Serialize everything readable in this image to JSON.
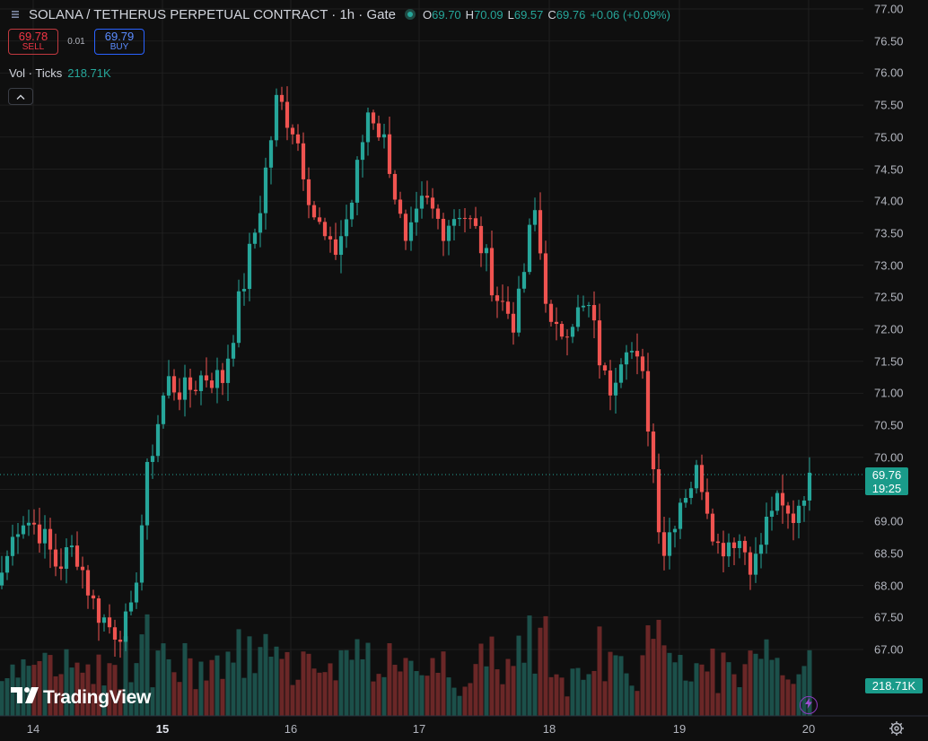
{
  "header": {
    "title": "SOLANA / TETHERUS PERPETUAL CONTRACT · 1h · Gate",
    "ohlc": {
      "o_label": "O",
      "o_value": "69.70",
      "h_label": "H",
      "h_value": "70.09",
      "l_label": "L",
      "l_value": "69.57",
      "c_label": "C",
      "c_value": "69.76",
      "change": "+0.06 (+0.09%)"
    }
  },
  "trade": {
    "sell_price": "69.78",
    "sell_label": "SELL",
    "spread": "0.01",
    "buy_price": "69.79",
    "buy_label": "BUY"
  },
  "volume_legend": {
    "label": "Vol · Ticks",
    "value": "218.71K"
  },
  "current_price": {
    "price": "69.76",
    "countdown": "19:25"
  },
  "volume_tag": "218.71K",
  "price_axis": [
    "77.00",
    "76.50",
    "76.00",
    "75.50",
    "75.00",
    "74.50",
    "74.00",
    "73.50",
    "73.00",
    "72.50",
    "72.00",
    "71.50",
    "71.00",
    "70.50",
    "70.00",
    "69.50",
    "69.00",
    "68.50",
    "68.00",
    "67.50",
    "67.00"
  ],
  "time_axis": [
    {
      "label": "14",
      "bold": false
    },
    {
      "label": "15",
      "bold": true
    },
    {
      "label": "16",
      "bold": false
    },
    {
      "label": "17",
      "bold": false
    },
    {
      "label": "18",
      "bold": false
    },
    {
      "label": "19",
      "bold": false
    },
    {
      "label": "20",
      "bold": false
    }
  ],
  "logo_text": "TradingView",
  "colors": {
    "up": "#26a69a",
    "down": "#ef5350",
    "accent": "#2962ff",
    "background": "#0f0f0f"
  },
  "icons": {
    "menu": "hamburger-icon",
    "status": "market-open-dot-icon",
    "collapse": "chevron-up-icon",
    "logo": "tradingview-logo-icon",
    "lightning": "lightning-icon",
    "settings": "gear-icon"
  },
  "chart_data": {
    "type": "candlestick",
    "x_start": "14",
    "x_end": "20",
    "interval": "1h",
    "ylim": [
      66.5,
      77.0
    ],
    "grid": true,
    "current_price": 69.76,
    "close_path": [
      {
        "x": "14",
        "close": 68.2
      },
      {
        "x": "14",
        "close": 69.1
      },
      {
        "x": "14",
        "close": 68.9
      },
      {
        "x": "14",
        "close": 68.3
      },
      {
        "x": "14",
        "close": 68.6
      },
      {
        "x": "14",
        "close": 67.7
      },
      {
        "x": "14",
        "close": 67.3
      },
      {
        "x": "14",
        "close": 67.4
      },
      {
        "x": "15",
        "close": 69.9
      },
      {
        "x": "15",
        "close": 71.2
      },
      {
        "x": "15",
        "close": 71.0
      },
      {
        "x": "15",
        "close": 71.3
      },
      {
        "x": "15",
        "close": 71.2
      },
      {
        "x": "15",
        "close": 72.5
      },
      {
        "x": "15",
        "close": 73.8
      },
      {
        "x": "15",
        "close": 75.6
      },
      {
        "x": "15",
        "close": 75.1
      },
      {
        "x": "16",
        "close": 73.8
      },
      {
        "x": "16",
        "close": 73.1
      },
      {
        "x": "16",
        "close": 73.9
      },
      {
        "x": "16",
        "close": 75.5
      },
      {
        "x": "16",
        "close": 74.8
      },
      {
        "x": "16",
        "close": 73.2
      },
      {
        "x": "16",
        "close": 74.0
      },
      {
        "x": "17",
        "close": 73.6
      },
      {
        "x": "17",
        "close": 73.9
      },
      {
        "x": "17",
        "close": 73.4
      },
      {
        "x": "17",
        "close": 72.5
      },
      {
        "x": "17",
        "close": 72.1
      },
      {
        "x": "17",
        "close": 73.9
      },
      {
        "x": "17",
        "close": 71.8
      },
      {
        "x": "18",
        "close": 72.2
      },
      {
        "x": "18",
        "close": 72.3
      },
      {
        "x": "18",
        "close": 71.0
      },
      {
        "x": "18",
        "close": 71.9
      },
      {
        "x": "18",
        "close": 71.1
      },
      {
        "x": "18",
        "close": 68.5
      },
      {
        "x": "18",
        "close": 69.4
      },
      {
        "x": "19",
        "close": 69.8
      },
      {
        "x": "19",
        "close": 68.6
      },
      {
        "x": "19",
        "close": 68.8
      },
      {
        "x": "19",
        "close": 68.3
      },
      {
        "x": "19",
        "close": 69.3
      },
      {
        "x": "19",
        "close": 69.0
      },
      {
        "x": "20",
        "close": 69.76
      }
    ],
    "volume_scale_max": 1.0,
    "last_volume": "218.71K"
  }
}
